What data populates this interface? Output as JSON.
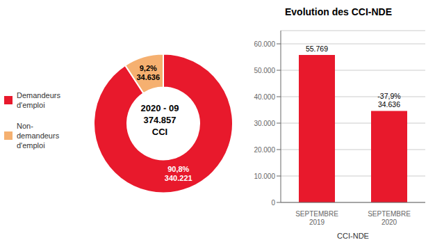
{
  "chart_data": [
    {
      "type": "pie",
      "categories": [
        "Demandeurs\nd'emploi",
        "Non-\ndemandeurs\nd'emploi"
      ],
      "values": [
        340221,
        34636
      ],
      "value_labels": [
        "340.221",
        "34.636"
      ],
      "shares": [
        90.8,
        9.2
      ],
      "share_labels": [
        "90,8%",
        "9,2%"
      ],
      "colors": [
        "#e8192c",
        "#f5b070"
      ],
      "label_colors": [
        "#ffffff",
        "#000000"
      ],
      "center_text": [
        "2020 - 09",
        "374.857",
        "CCI"
      ],
      "legend": "left"
    },
    {
      "type": "bar",
      "title": "Evolution des CCI-NDE",
      "categories": [
        "SEPTEMBRE\n2019",
        "SEPTEMBRE\n2020"
      ],
      "values": [
        55769,
        34636
      ],
      "value_labels": [
        "55.769",
        "34.636"
      ],
      "annotations": [
        {
          "text": "-37,9%",
          "category": "SEPTEMBRE\n2020"
        }
      ],
      "color": "#e8192c",
      "xlabel": "CCI-NDE",
      "ylim": [
        0,
        65000
      ],
      "yticks": [
        0,
        {
          "value": 10000,
          "label": "10.000"
        },
        {
          "value": 20000,
          "label": "20.000"
        },
        {
          "value": 30000,
          "label": "30.000"
        },
        {
          "value": 40000,
          "label": "40.000"
        },
        {
          "value": 50000,
          "label": "50.000"
        },
        {
          "value": 60000,
          "label": "60.000"
        }
      ],
      "grid": true
    }
  ]
}
